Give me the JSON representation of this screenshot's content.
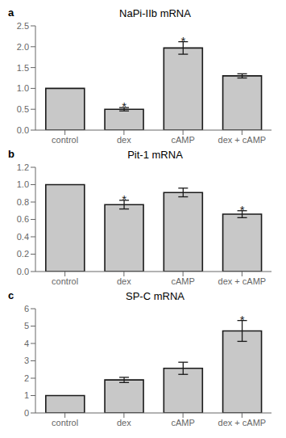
{
  "chart_data": [
    {
      "type": "bar",
      "label": "a",
      "title": "NaPi-IIb mRNA",
      "categories": [
        "control",
        "dex",
        "cAMP",
        "dex + cAMP"
      ],
      "values": [
        1.0,
        0.5,
        1.97,
        1.3
      ],
      "errors": [
        0.0,
        0.04,
        0.15,
        0.05
      ],
      "annotations": [
        null,
        "*",
        "*",
        null
      ],
      "color": "#c8c8c8",
      "ylim": [
        0,
        2.5
      ],
      "yticks": [
        {
          "value": 0,
          "label": "0.0"
        },
        0.5,
        {
          "value": 1,
          "label": "1.0"
        },
        1.5,
        {
          "value": 2,
          "label": "2.0"
        },
        2.5
      ],
      "grid": false
    },
    {
      "type": "bar",
      "label": "b",
      "title": "Pit-1 mRNA",
      "categories": [
        "control",
        "dex",
        "cAMP",
        "dex + cAMP"
      ],
      "values": [
        1.0,
        0.77,
        0.91,
        0.66
      ],
      "errors": [
        0.0,
        0.05,
        0.05,
        0.04
      ],
      "annotations": [
        null,
        "*",
        null,
        "*"
      ],
      "color": "#c8c8c8",
      "ylim": [
        0,
        1.2
      ],
      "yticks": [
        {
          "value": 0,
          "label": "0.0"
        },
        0.2,
        0.4,
        0.6,
        0.8,
        {
          "value": 1,
          "label": "1.0"
        },
        1.2
      ],
      "grid": false
    },
    {
      "type": "bar",
      "label": "c",
      "title": "SP-C mRNA",
      "categories": [
        "control",
        "dex",
        "cAMP",
        "dex + cAMP"
      ],
      "values": [
        1.0,
        1.9,
        2.57,
        4.72
      ],
      "errors": [
        0.0,
        0.15,
        0.35,
        0.6
      ],
      "annotations": [
        null,
        null,
        null,
        "*"
      ],
      "color": "#c8c8c8",
      "ylim": [
        0,
        6
      ],
      "yticks": [
        0,
        1,
        2,
        3,
        4,
        5,
        6
      ],
      "grid": false
    }
  ]
}
